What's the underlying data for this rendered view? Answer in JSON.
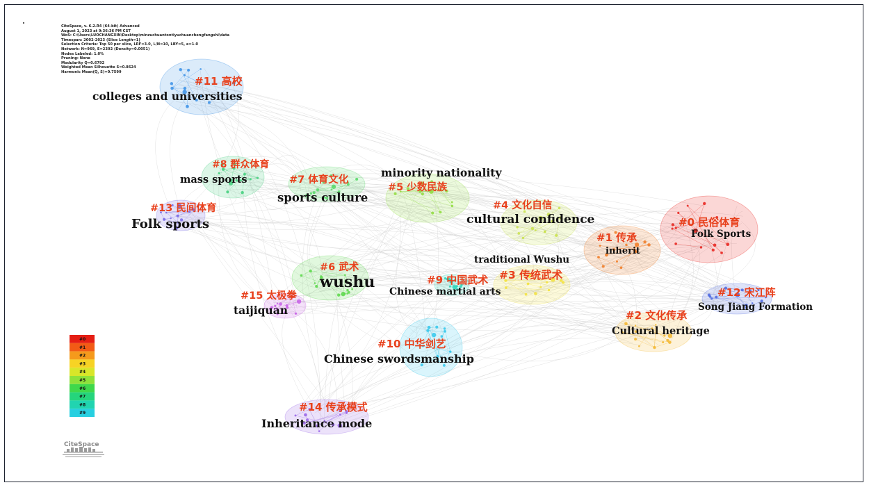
{
  "meta_lines": [
    "CiteSpace, v. 6.2.R4 (64-bit) Advanced",
    "August 1, 2023 at 9:36:36 PM CST",
    "WoS: C:\\Users\\LUOCHANGXIN\\Desktop\\minzuchuantontiyuchuanchengfangshi\\data",
    "Timespan: 2002-2023 (Slice Length=1)",
    "Selection Criteria: Top 50 per slice, LRF=3.0, L/N=10, LBY=5, e=1.0",
    "Network: N=969, E=2392 (Density=0.0051)",
    "Nodes Labeled: 1.0%",
    "Pruning: None",
    "Modularity Q=0.6792",
    "Weighted Mean Silhouette S=0.8624",
    "Harmonic Mean(Q, S)=0.7599"
  ],
  "clusters": [
    {
      "id": "#0 民俗体育",
      "label": "Folk Sports",
      "color": "#e8201a"
    },
    {
      "id": "#1 传承",
      "label": "inherit",
      "color": "#f07a22"
    },
    {
      "id": "#2 文化传承",
      "label": "Cultural heritage",
      "color": "#f3b62c"
    },
    {
      "id": "#3 传统武术",
      "label": "traditional Wushu",
      "color": "#f2e23a"
    },
    {
      "id": "#4 文化自信",
      "label": "cultural confidence",
      "color": "#c9e24a"
    },
    {
      "id": "#5 少数民族",
      "label": "minority nationality",
      "color": "#8fdc3d"
    },
    {
      "id": "#6 武术",
      "label": "wushu",
      "color": "#5ad84a"
    },
    {
      "id": "#7 体育文化",
      "label": "sports culture",
      "color": "#55d866"
    },
    {
      "id": "#8 群众体育",
      "label": "mass sports",
      "color": "#3fcf7a"
    },
    {
      "id": "#9 中国武术",
      "label": "Chinese martial arts",
      "color": "#2ad6b8"
    },
    {
      "id": "#10 中华剑艺",
      "label": "Chinese swordsmanship",
      "color": "#34c8ec"
    },
    {
      "id": "#11 高校",
      "label": "colleges and universities",
      "color": "#3a90e6"
    },
    {
      "id": "#12 宋江阵",
      "label": "Song Jiang Formation",
      "color": "#4a66e0"
    },
    {
      "id": "#13 民间体育",
      "label": "Folk sports",
      "color": "#7466e6"
    },
    {
      "id": "#14 传承模式",
      "label": "Inheritance mode",
      "color": "#9560e6"
    },
    {
      "id": "#15 太极拳",
      "label": "taijiquan",
      "color": "#c75ee6"
    }
  ],
  "legend": {
    "items": [
      "#0",
      "#1",
      "#2",
      "#3",
      "#4",
      "#5",
      "#6",
      "#7",
      "#8",
      "#9"
    ],
    "colors": [
      "#e51e14",
      "#f25b16",
      "#f59a1c",
      "#f7d324",
      "#d9e629",
      "#8fe13a",
      "#3fd84b",
      "#25d57c",
      "#21d4b0",
      "#27cfe0"
    ]
  },
  "logo_text": "CiteSpace"
}
